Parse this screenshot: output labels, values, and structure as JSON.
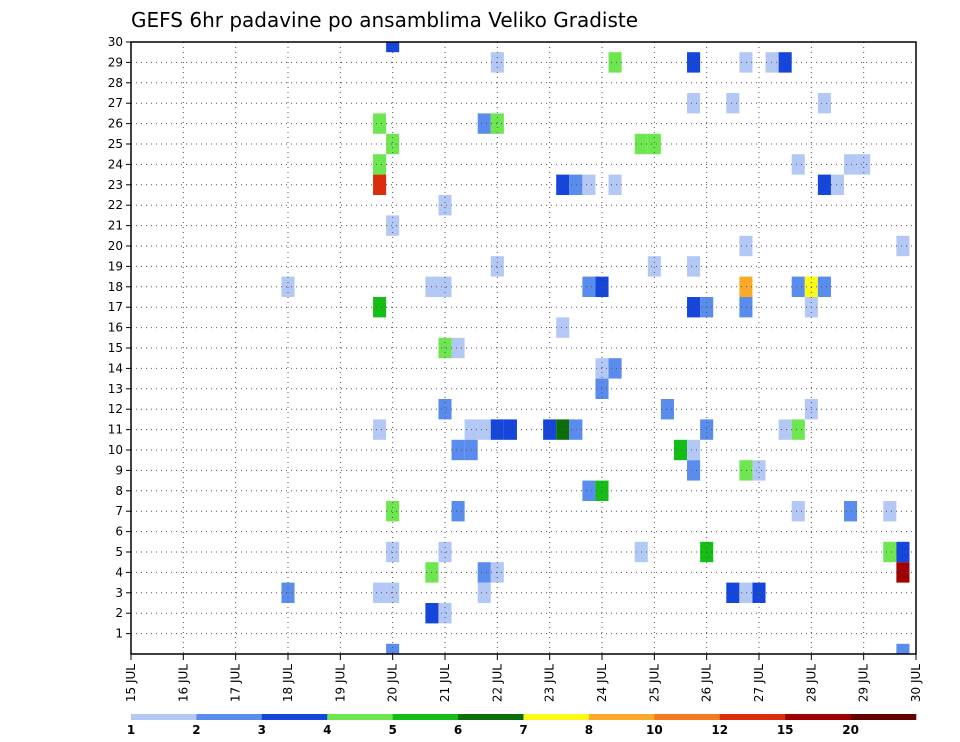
{
  "chart_data": {
    "type": "heatmap",
    "title": "GEFS 6hr padavine po ansamblima Veliko Gradiste",
    "xlabel": "",
    "ylabel": "",
    "x_ticks": [
      "15 JUL",
      "16 JUL",
      "17 JUL",
      "18 JUL",
      "19 JUL",
      "20 JUL",
      "21 JUL",
      "22 JUL",
      "23 JUL",
      "24 JUL",
      "25 JUL",
      "26 JUL",
      "27 JUL",
      "28 JUL",
      "29 JUL",
      "30 JUL"
    ],
    "y_ticks": [
      "1",
      "2",
      "3",
      "4",
      "5",
      "6",
      "7",
      "8",
      "9",
      "10",
      "11",
      "12",
      "13",
      "14",
      "15",
      "16",
      "17",
      "18",
      "19",
      "20",
      "21",
      "22",
      "23",
      "24",
      "25",
      "26",
      "27",
      "28",
      "29",
      "30"
    ],
    "xlim": [
      15,
      30
    ],
    "ylim": [
      0,
      30
    ],
    "grid": true,
    "legend": {
      "placement": "bottom",
      "labels": [
        "1",
        "2",
        "3",
        "4",
        "5",
        "6",
        "7",
        "8",
        "10",
        "12",
        "15",
        "20"
      ],
      "colors": [
        "#b4c8f5",
        "#5a8cee",
        "#1446dc",
        "#6ee650",
        "#14be14",
        "#0a6e0a",
        "#fafa14",
        "#faaa28",
        "#f5781e",
        "#dc2d0a",
        "#a00000",
        "#640000"
      ]
    },
    "cells": [
      {
        "day": "20.0",
        "member": 30,
        "level": 3
      },
      {
        "day": "22.0",
        "member": 29,
        "level": 1
      },
      {
        "day": "24.25",
        "member": 29,
        "level": 4
      },
      {
        "day": "25.75",
        "member": 29,
        "level": 3
      },
      {
        "day": "26.75",
        "member": 29,
        "level": 1
      },
      {
        "day": "27.25",
        "member": 29,
        "level": 1
      },
      {
        "day": "27.5",
        "member": 29,
        "level": 3
      },
      {
        "day": "25.75",
        "member": 27,
        "level": 1
      },
      {
        "day": "26.5",
        "member": 27,
        "level": 1
      },
      {
        "day": "28.25",
        "member": 27,
        "level": 1
      },
      {
        "day": "19.75",
        "member": 26,
        "level": 4
      },
      {
        "day": "21.75",
        "member": 26,
        "level": 2
      },
      {
        "day": "22.0",
        "member": 26,
        "level": 4
      },
      {
        "day": "20.0",
        "member": 25,
        "level": 4
      },
      {
        "day": "24.75",
        "member": 25,
        "level": 4
      },
      {
        "day": "25.0",
        "member": 25,
        "level": 4
      },
      {
        "day": "19.75",
        "member": 24,
        "level": 4
      },
      {
        "day": "27.75",
        "member": 24,
        "level": 1
      },
      {
        "day": "28.75",
        "member": 24,
        "level": 1
      },
      {
        "day": "29.0",
        "member": 24,
        "level": 1
      },
      {
        "day": "19.75",
        "member": 23,
        "level": 10
      },
      {
        "day": "23.25",
        "member": 23,
        "level": 3
      },
      {
        "day": "23.5",
        "member": 23,
        "level": 2
      },
      {
        "day": "23.75",
        "member": 23,
        "level": 1
      },
      {
        "day": "24.25",
        "member": 23,
        "level": 1
      },
      {
        "day": "28.25",
        "member": 23,
        "level": 3
      },
      {
        "day": "28.5",
        "member": 23,
        "level": 1
      },
      {
        "day": "21.0",
        "member": 22,
        "level": 1
      },
      {
        "day": "20.0",
        "member": 21,
        "level": 1
      },
      {
        "day": "26.75",
        "member": 20,
        "level": 1
      },
      {
        "day": "29.75",
        "member": 20,
        "level": 1
      },
      {
        "day": "22.0",
        "member": 19,
        "level": 1
      },
      {
        "day": "25.0",
        "member": 19,
        "level": 1
      },
      {
        "day": "25.75",
        "member": 19,
        "level": 1
      },
      {
        "day": "18.0",
        "member": 18,
        "level": 1
      },
      {
        "day": "20.75",
        "member": 18,
        "level": 1
      },
      {
        "day": "21.0",
        "member": 18,
        "level": 1
      },
      {
        "day": "23.75",
        "member": 18,
        "level": 2
      },
      {
        "day": "24.0",
        "member": 18,
        "level": 3
      },
      {
        "day": "26.75",
        "member": 18,
        "level": 8
      },
      {
        "day": "27.75",
        "member": 18,
        "level": 2
      },
      {
        "day": "28.0",
        "member": 18,
        "level": 7
      },
      {
        "day": "28.25",
        "member": 18,
        "level": 2
      },
      {
        "day": "19.75",
        "member": 17,
        "level": 5
      },
      {
        "day": "25.75",
        "member": 17,
        "level": 3
      },
      {
        "day": "26.0",
        "member": 17,
        "level": 2
      },
      {
        "day": "26.75",
        "member": 17,
        "level": 2
      },
      {
        "day": "28.0",
        "member": 17,
        "level": 1
      },
      {
        "day": "23.25",
        "member": 16,
        "level": 1
      },
      {
        "day": "21.0",
        "member": 15,
        "level": 4
      },
      {
        "day": "21.25",
        "member": 15,
        "level": 1
      },
      {
        "day": "24.0",
        "member": 14,
        "level": 1
      },
      {
        "day": "24.25",
        "member": 14,
        "level": 2
      },
      {
        "day": "24.0",
        "member": 13,
        "level": 2
      },
      {
        "day": "21.0",
        "member": 12,
        "level": 2
      },
      {
        "day": "25.25",
        "member": 12,
        "level": 2
      },
      {
        "day": "28.0",
        "member": 12,
        "level": 1
      },
      {
        "day": "19.75",
        "member": 11,
        "level": 1
      },
      {
        "day": "21.5",
        "member": 11,
        "level": 1
      },
      {
        "day": "21.75",
        "member": 11,
        "level": 1
      },
      {
        "day": "22.0",
        "member": 11,
        "level": 3
      },
      {
        "day": "22.25",
        "member": 11,
        "level": 3
      },
      {
        "day": "23.0",
        "member": 11,
        "level": 3
      },
      {
        "day": "23.25",
        "member": 11,
        "level": 6
      },
      {
        "day": "23.5",
        "member": 11,
        "level": 2
      },
      {
        "day": "26.0",
        "member": 11,
        "level": 2
      },
      {
        "day": "27.5",
        "member": 11,
        "level": 1
      },
      {
        "day": "27.75",
        "member": 11,
        "level": 4
      },
      {
        "day": "21.25",
        "member": 10,
        "level": 2
      },
      {
        "day": "21.5",
        "member": 10,
        "level": 2
      },
      {
        "day": "25.5",
        "member": 10,
        "level": 5
      },
      {
        "day": "25.75",
        "member": 10,
        "level": 1
      },
      {
        "day": "25.75",
        "member": 9,
        "level": 2
      },
      {
        "day": "26.75",
        "member": 9,
        "level": 4
      },
      {
        "day": "27.0",
        "member": 9,
        "level": 1
      },
      {
        "day": "23.75",
        "member": 8,
        "level": 2
      },
      {
        "day": "24.0",
        "member": 8,
        "level": 5
      },
      {
        "day": "20.0",
        "member": 7,
        "level": 4
      },
      {
        "day": "21.25",
        "member": 7,
        "level": 2
      },
      {
        "day": "27.75",
        "member": 7,
        "level": 1
      },
      {
        "day": "28.75",
        "member": 7,
        "level": 2
      },
      {
        "day": "29.5",
        "member": 7,
        "level": 1
      },
      {
        "day": "20.0",
        "member": 5,
        "level": 1
      },
      {
        "day": "21.0",
        "member": 5,
        "level": 1
      },
      {
        "day": "24.75",
        "member": 5,
        "level": 1
      },
      {
        "day": "26.0",
        "member": 5,
        "level": 5
      },
      {
        "day": "29.5",
        "member": 5,
        "level": 4
      },
      {
        "day": "29.75",
        "member": 5,
        "level": 3
      },
      {
        "day": "20.75",
        "member": 4,
        "level": 4
      },
      {
        "day": "21.75",
        "member": 4,
        "level": 2
      },
      {
        "day": "22.0",
        "member": 4,
        "level": 1
      },
      {
        "day": "29.75",
        "member": 4,
        "level": 11
      },
      {
        "day": "18.0",
        "member": 3,
        "level": 2
      },
      {
        "day": "19.75",
        "member": 3,
        "level": 1
      },
      {
        "day": "20.0",
        "member": 3,
        "level": 1
      },
      {
        "day": "21.75",
        "member": 3,
        "level": 1
      },
      {
        "day": "26.5",
        "member": 3,
        "level": 3
      },
      {
        "day": "26.75",
        "member": 3,
        "level": 1
      },
      {
        "day": "27.0",
        "member": 3,
        "level": 3
      },
      {
        "day": "20.75",
        "member": 2,
        "level": 3
      },
      {
        "day": "21.0",
        "member": 2,
        "level": 1
      },
      {
        "day": "20.0",
        "member": 0,
        "level": 2
      },
      {
        "day": "29.75",
        "member": 0,
        "level": 2
      }
    ]
  }
}
